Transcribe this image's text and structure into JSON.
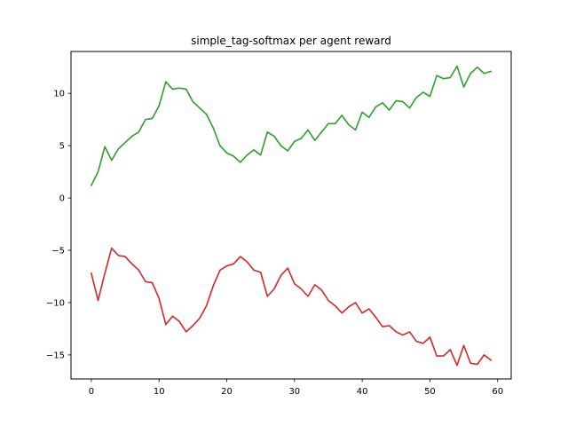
{
  "chart_data": {
    "type": "line",
    "title": "simple_tag-softmax per agent reward",
    "xlabel": "",
    "ylabel": "",
    "xlim": [
      -3,
      62
    ],
    "ylim": [
      -17.3,
      14
    ],
    "xticks": [
      0,
      10,
      20,
      30,
      40,
      50,
      60
    ],
    "yticks": [
      -15,
      -10,
      -5,
      0,
      5,
      10
    ],
    "grid": false,
    "x": [
      0,
      1,
      2,
      3,
      4,
      5,
      6,
      7,
      8,
      9,
      10,
      11,
      12,
      13,
      14,
      15,
      16,
      17,
      18,
      19,
      20,
      21,
      22,
      23,
      24,
      25,
      26,
      27,
      28,
      29,
      30,
      31,
      32,
      33,
      34,
      35,
      36,
      37,
      38,
      39,
      40,
      41,
      42,
      43,
      44,
      45,
      46,
      47,
      48,
      49,
      50,
      51,
      52,
      53,
      54,
      55,
      56,
      57,
      58,
      59
    ],
    "series": [
      {
        "color": "#2ca02c",
        "values": [
          1.2,
          2.5,
          4.9,
          3.6,
          4.7,
          5.3,
          5.9,
          6.3,
          7.5,
          7.6,
          8.8,
          11.1,
          10.4,
          10.5,
          10.4,
          9.2,
          8.6,
          8.0,
          6.7,
          5.0,
          4.3,
          4.0,
          3.4,
          4.1,
          4.6,
          4.1,
          6.3,
          5.9,
          5.0,
          4.5,
          5.4,
          5.7,
          6.5,
          5.5,
          6.3,
          7.1,
          7.1,
          7.9,
          7.0,
          6.5,
          8.2,
          7.7,
          8.7,
          9.1,
          8.4,
          9.3,
          9.2,
          8.6,
          9.6,
          10.1,
          9.7,
          11.7,
          11.4,
          11.5,
          12.6,
          10.6,
          11.9,
          12.5,
          11.9,
          12.1
        ]
      },
      {
        "color": "#d62728",
        "values": [
          -7.2,
          -9.8,
          -7.2,
          -4.8,
          -5.5,
          -5.6,
          -6.3,
          -6.9,
          -8.0,
          -8.1,
          -9.6,
          -12.1,
          -11.3,
          -11.8,
          -12.8,
          -12.2,
          -11.5,
          -10.3,
          -8.4,
          -6.9,
          -6.5,
          -6.3,
          -5.6,
          -6.1,
          -6.9,
          -7.1,
          -9.4,
          -8.7,
          -7.4,
          -6.7,
          -8.2,
          -8.7,
          -9.4,
          -8.3,
          -8.8,
          -9.8,
          -10.3,
          -11.0,
          -10.4,
          -10.0,
          -11.0,
          -10.6,
          -11.4,
          -12.3,
          -12.2,
          -12.8,
          -13.1,
          -12.8,
          -13.7,
          -13.9,
          -13.3,
          -15.1,
          -15.1,
          -14.5,
          -16.0,
          -14.1,
          -15.8,
          -15.9,
          -15.0,
          -15.5
        ]
      }
    ]
  }
}
